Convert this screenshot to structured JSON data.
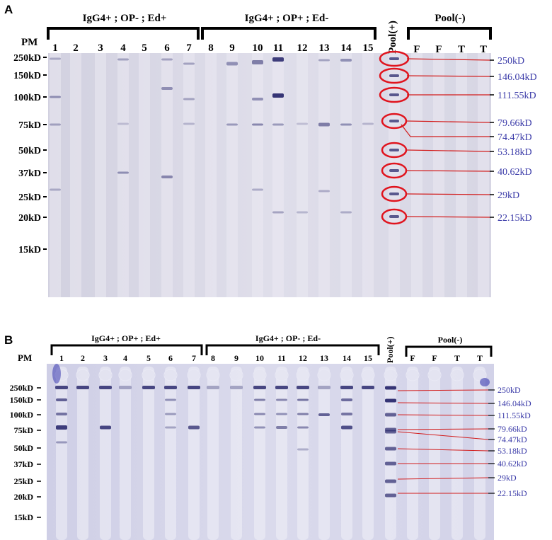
{
  "panels": [
    {
      "letter": "A",
      "pm_label": "PM",
      "groups": [
        {
          "label": "IgG4+ ; OP- ; Ed+",
          "lanes": [
            "1",
            "2",
            "3",
            "4",
            "5",
            "6",
            "7"
          ]
        },
        {
          "label": "IgG4+ ; OP+ ; Ed-",
          "lanes": [
            "8",
            "9",
            "10",
            "11",
            "12",
            "13",
            "14",
            "15"
          ]
        }
      ],
      "pool_pos": "Pool(+)",
      "pool_neg": {
        "label": "Pool(-)",
        "lanes": [
          "F",
          "F",
          "T",
          "T"
        ]
      },
      "markers": [
        "250kD",
        "150kD",
        "100kD",
        "75kD",
        "50kD",
        "37kD",
        "25kD",
        "20kD",
        "15kD"
      ],
      "annotations": [
        "250kD",
        "146.04kD",
        "111.55kD",
        "79.66kD",
        "74.47kD",
        "53.18kD",
        "40.62kD",
        "29kD",
        "22.15kD"
      ]
    },
    {
      "letter": "B",
      "pm_label": "PM",
      "groups": [
        {
          "label": "IgG4+ ; OP+ ; Ed+",
          "lanes": [
            "1",
            "2",
            "3",
            "4",
            "5",
            "6",
            "7"
          ]
        },
        {
          "label": "IgG4+ ; OP- ; Ed-",
          "lanes": [
            "8",
            "9",
            "10",
            "11",
            "12",
            "13",
            "14",
            "15"
          ]
        }
      ],
      "pool_pos": "Pool(+)",
      "pool_neg": {
        "label": "Pool(-)",
        "lanes": [
          "F",
          "F",
          "T",
          "T"
        ]
      },
      "markers": [
        "250kD",
        "150kD",
        "100kD",
        "75kD",
        "50kD",
        "37kD",
        "25kD",
        "20kD",
        "15kD"
      ],
      "annotations": [
        "250kD",
        "146.04kD",
        "111.55kD",
        "79.66kD",
        "74.47kD",
        "53.18kD",
        "40.62kD",
        "29kD",
        "22.15kD"
      ]
    }
  ],
  "colors": {
    "annotation_text": "#3a3aa8",
    "annotation_line": "#d21c1c",
    "circle": "#e0141e",
    "membrane_a": "#d9d8e6",
    "membrane_b": "#d6d6e8",
    "band": "#2b2a6e"
  }
}
